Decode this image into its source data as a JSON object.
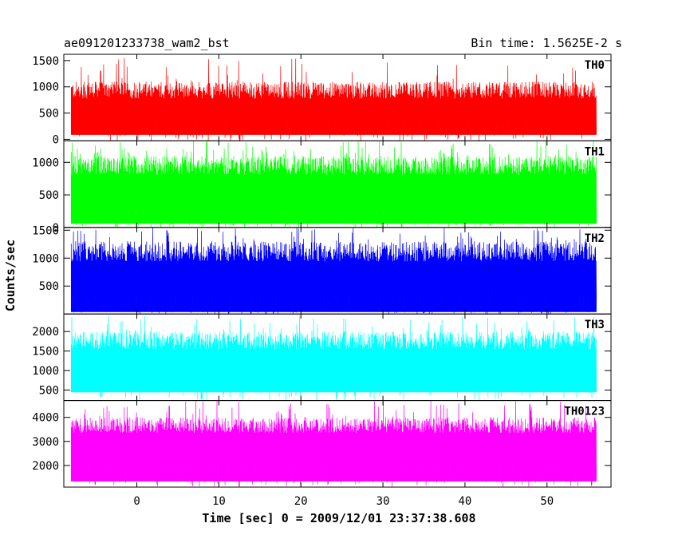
{
  "chart_data": {
    "type": "line",
    "title": "ae091201233738_wam2_bst",
    "bin_time_label": "Bin time: 1.5625E-2 s",
    "xlabel": "Time [sec] 0 = 2009/12/01 23:37:38.608",
    "ylabel": "Counts/sec",
    "xlim": [
      -8.9,
      57.8
    ],
    "data_range": [
      -8.0,
      56.0
    ],
    "x_ticks": [
      0,
      10,
      20,
      30,
      40,
      50
    ],
    "grid": false,
    "series": [
      {
        "name": "TH0",
        "color": "#ff0000",
        "ylim": [
          -30,
          1620
        ],
        "y_ticks": [
          0,
          500,
          1000,
          1500
        ],
        "base": 90,
        "mean": 600,
        "typ_high": 1100,
        "max": 1600
      },
      {
        "name": "TH1",
        "color": "#00ff00",
        "ylim": [
          0,
          1330
        ],
        "y_ticks": [
          0,
          500,
          1000
        ],
        "base": 60,
        "mean": 650,
        "typ_high": 1100,
        "max": 1330
      },
      {
        "name": "TH2",
        "color": "#0000ff",
        "ylim": [
          0,
          1550
        ],
        "y_ticks": [
          500,
          1000,
          1500
        ],
        "base": 40,
        "mean": 750,
        "typ_high": 1300,
        "max": 1550
      },
      {
        "name": "TH3",
        "color": "#00ffff",
        "ylim": [
          230,
          2450
        ],
        "y_ticks": [
          500,
          1000,
          1500,
          2000
        ],
        "base": 450,
        "mean": 1300,
        "typ_high": 2000,
        "max": 2400
      },
      {
        "name": "TH0123",
        "color": "#ff00ff",
        "ylim": [
          1100,
          4700
        ],
        "y_ticks": [
          2000,
          3000,
          4000
        ],
        "base": 1350,
        "mean": 3000,
        "typ_high": 4000,
        "max": 4700
      }
    ]
  }
}
